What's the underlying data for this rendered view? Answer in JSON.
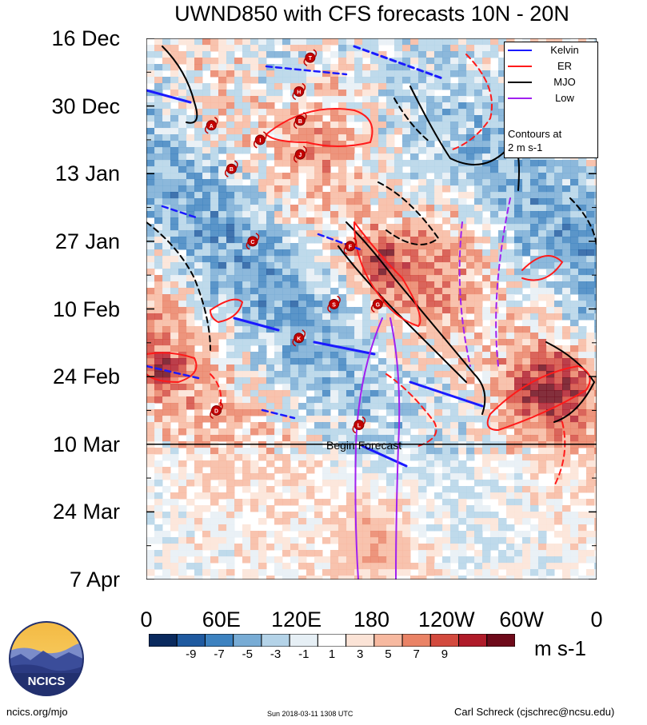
{
  "chart_data": {
    "type": "heatmap",
    "title": "UWND850 with CFS forecasts 10N - 20N",
    "y_tick_labels": [
      "16 Dec",
      "30 Dec",
      "13 Jan",
      "27 Jan",
      "10 Feb",
      "24 Feb",
      "10 Mar",
      "24 Mar",
      "7 Apr"
    ],
    "x_tick_labels": [
      "0",
      "60E",
      "120E",
      "180",
      "120W",
      "60W",
      "0"
    ],
    "x_range_deg_east": [
      0,
      360
    ],
    "y_range_days_from_16dec": [
      0,
      112
    ],
    "colorbar": {
      "ticks": [
        "-9",
        "-7",
        "-5",
        "-3",
        "-1",
        "1",
        "3",
        "5",
        "7",
        "9"
      ],
      "units": "m s-1",
      "colors": [
        "#0a2a5e",
        "#1f5aa0",
        "#3d82c0",
        "#78acd5",
        "#b4d3e8",
        "#e6eff5",
        "#ffffff",
        "#fbe3d6",
        "#f7b9a0",
        "#ea8366",
        "#d34a3e",
        "#b01c2a",
        "#6e0a1a"
      ]
    },
    "legend": [
      {
        "name": "Kelvin",
        "color": "#1a1aff"
      },
      {
        "name": "ER",
        "color": "#ff1a1a"
      },
      {
        "name": "MJO",
        "color": "#000000"
      },
      {
        "name": "Low",
        "color": "#a020f0"
      }
    ],
    "legend_note": [
      "Contours at",
      "2 m s-1"
    ],
    "annotation": "Begin Forecast",
    "forecast_start_day": 84,
    "storm_markers": [
      {
        "label": "T",
        "lon": 131,
        "day": 4
      },
      {
        "label": "H",
        "lon": 122,
        "day": 11
      },
      {
        "label": "B",
        "lon": 123,
        "day": 17
      },
      {
        "label": "A",
        "lon": 52,
        "day": 18
      },
      {
        "label": "I",
        "lon": 91,
        "day": 21
      },
      {
        "label": "J",
        "lon": 123,
        "day": 24
      },
      {
        "label": "B",
        "lon": 68,
        "day": 27
      },
      {
        "label": "C",
        "lon": 85,
        "day": 42
      },
      {
        "label": "F",
        "lon": 163,
        "day": 43
      },
      {
        "label": "S",
        "lon": 150,
        "day": 55
      },
      {
        "label": "G",
        "lon": 185,
        "day": 55
      },
      {
        "label": "K",
        "lon": 122,
        "day": 62
      },
      {
        "label": "D",
        "lon": 56,
        "day": 77
      },
      {
        "label": "L",
        "lon": 170,
        "day": 80
      }
    ]
  },
  "footer": {
    "left": "ncics.org/mjo",
    "middle": "Sun 2018-03-11 1308 UTC",
    "right": "Carl Schreck (cjschrec@ncsu.edu)",
    "logo_text": "NCICS"
  }
}
